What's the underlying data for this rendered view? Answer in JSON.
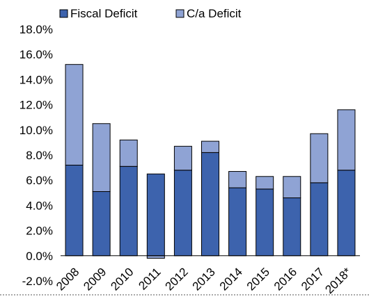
{
  "chart_data": {
    "type": "bar",
    "stacked": true,
    "categories": [
      "2008",
      "2009",
      "2010",
      "2011",
      "2012",
      "2013",
      "2014",
      "2015",
      "2016",
      "2017",
      "2018*"
    ],
    "series": [
      {
        "name": "Fiscal Deficit",
        "color": "#3d63ad",
        "values": [
          7.2,
          5.1,
          7.1,
          6.5,
          6.8,
          8.2,
          5.4,
          5.3,
          4.6,
          5.8,
          6.8
        ]
      },
      {
        "name": "C/a Deficit",
        "color": "#8fa3d4",
        "values": [
          8.0,
          5.4,
          2.1,
          -0.2,
          1.9,
          0.9,
          1.3,
          1.0,
          1.7,
          3.9,
          4.8
        ]
      }
    ],
    "y_ticks": [
      "-2.0%",
      "0.0%",
      "2.0%",
      "4.0%",
      "6.0%",
      "8.0%",
      "10.0%",
      "12.0%",
      "14.0%",
      "16.0%",
      "18.0%"
    ],
    "ylim": [
      -2,
      18
    ],
    "title": "",
    "xlabel": "",
    "ylabel": "",
    "legend_position": "top",
    "grid": false
  }
}
